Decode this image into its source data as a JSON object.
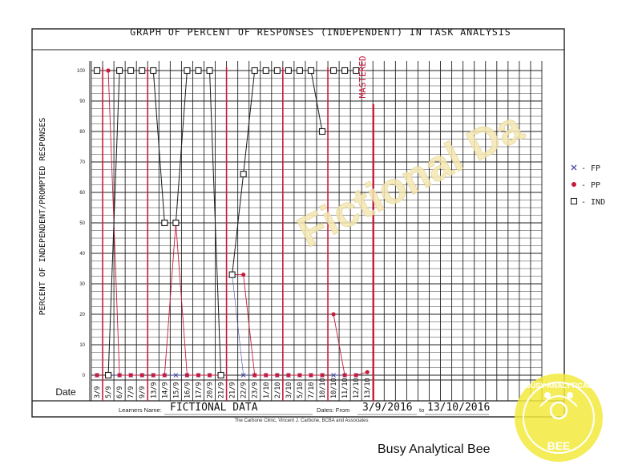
{
  "title": "GRAPH OF PERCENT OF RESPONSES (INDEPENDENT) IN TASK ANALYSIS",
  "ylabel": "PERCENT OF INDEPENDENT/PROMPTED RESPONSES",
  "date_label": "Date",
  "learner": {
    "label": "Learners Name:",
    "value": "FICTIONAL DATA"
  },
  "dates": {
    "label": "Dates: From",
    "from": "3/9/2016",
    "to_label": "to",
    "to": "13/10/2016"
  },
  "credit": "The Carbone Clinic, Vincent J. Carbone, BCBA and Associates",
  "mastered_label": "MASTERED",
  "watermark_text": "Fictional Da",
  "caption": "Busy Analytical Bee",
  "stamp": {
    "top_text": "BUSY ANALYTICAL",
    "bottom_text": "BEE"
  },
  "legend": [
    {
      "marker": "x",
      "label": "- FP",
      "color": "#4a4aa8"
    },
    {
      "marker": "dot",
      "label": "- PP",
      "color": "#c81a3c"
    },
    {
      "marker": "square",
      "label": "- IND",
      "color": "#222222"
    }
  ],
  "colors": {
    "fp": "#4a4aa8",
    "pp": "#c81a3c",
    "ind": "#1a1a1a",
    "phase_line": "#c81a3c",
    "grid": "#222222"
  },
  "chart_data": {
    "type": "line",
    "ylim": [
      0,
      100
    ],
    "yticks": [
      0,
      10,
      20,
      30,
      40,
      50,
      60,
      70,
      80,
      90,
      100
    ],
    "grid": true,
    "legend_position": "right",
    "x": [
      "3/9",
      "5/9",
      "6/9",
      "7/9",
      "9/9",
      "13/9",
      "14/9",
      "15/9",
      "16/9",
      "17/9",
      "20/9",
      "21/9",
      "21/9",
      "22/9",
      "23/9",
      "1/10",
      "2/10",
      "3/10",
      "5/10",
      "7/10",
      "10/10",
      "10/10",
      "11/10",
      "12/10",
      "13/10"
    ],
    "series": [
      {
        "name": "FP",
        "values": [
          0,
          0,
          0,
          0,
          0,
          0,
          0,
          0,
          0,
          0,
          0,
          0,
          33,
          0,
          0,
          0,
          0,
          0,
          0,
          0,
          0,
          0,
          0,
          0,
          null
        ]
      },
      {
        "name": "PP",
        "values": [
          0,
          100,
          0,
          0,
          0,
          0,
          0,
          50,
          0,
          0,
          0,
          0,
          33,
          33,
          0,
          0,
          0,
          0,
          0,
          0,
          0,
          20,
          0,
          0,
          1
        ]
      },
      {
        "name": "IND",
        "values": [
          100,
          0,
          100,
          100,
          100,
          100,
          50,
          50,
          100,
          100,
          100,
          0,
          33,
          66,
          100,
          100,
          100,
          100,
          100,
          100,
          80,
          100,
          100,
          100,
          null
        ]
      }
    ],
    "phase_change_after_index": [
      0,
      4,
      11,
      16,
      20
    ],
    "mastered_after_index": 24
  }
}
